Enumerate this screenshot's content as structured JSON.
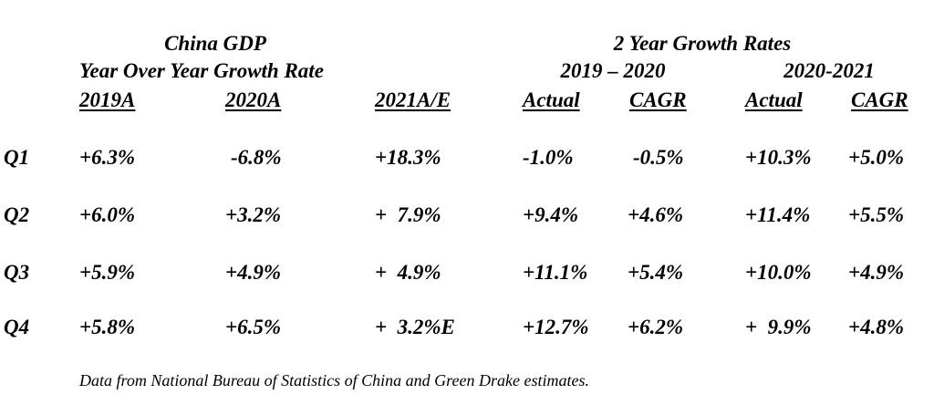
{
  "header": {
    "left_title_line1": "China GDP",
    "left_title_line2": "Year Over Year Growth Rate",
    "right_title_line1": "2 Year Growth Rates",
    "period_2019_2020": "2019 – 2020",
    "period_2020_2021": "2020-2021"
  },
  "columns": [
    "2019A",
    "2020A",
    "2021A/E",
    "Actual",
    "CAGR",
    "Actual",
    "CAGR"
  ],
  "rows": [
    {
      "label": "Q1",
      "cells": [
        "+6.3%",
        "-6.8%",
        "+18.3%",
        "-1.0%",
        "-0.5%",
        "+10.3%",
        "+5.0%"
      ]
    },
    {
      "label": "Q2",
      "cells": [
        "+6.0%",
        "+3.2%",
        "+  7.9%",
        "+9.4%",
        "+4.6%",
        "+11.4%",
        "+5.5%"
      ]
    },
    {
      "label": "Q3",
      "cells": [
        "+5.9%",
        "+4.9%",
        "+  4.9%",
        "+11.1%",
        "+5.4%",
        "+10.0%",
        "+4.9%"
      ]
    },
    {
      "label": "Q4",
      "cells": [
        "+5.8%",
        "+6.5%",
        "+  3.2%E",
        "+12.7%",
        "+6.2%",
        "+  9.9%",
        "+4.8%"
      ]
    }
  ],
  "footnote": "Data from National Bureau of Statistics of China and Green Drake estimates."
}
